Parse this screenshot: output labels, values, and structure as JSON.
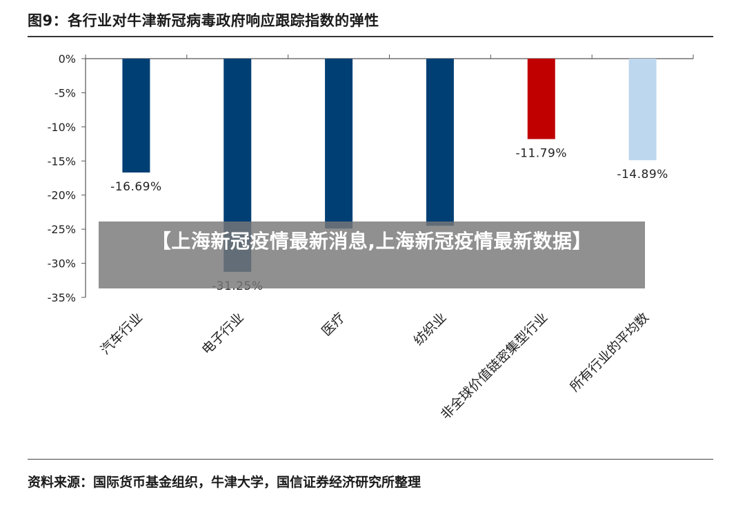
{
  "header": {
    "title": "图9：各行业对牛津新冠病毒政府响应跟踪指数的弹性"
  },
  "footer": {
    "source": "资料来源：国际货币基金组织，牛津大学，国信证券经济研究所整理"
  },
  "overlay": {
    "text": "【上海新冠疫情最新消息,上海新冠疫情最新数据】"
  },
  "colors": {
    "dark_blue": "#003f74",
    "red": "#c00000",
    "light_blue": "#bdd7ee",
    "axis": "#555555"
  },
  "chart_data": {
    "type": "bar",
    "title": "",
    "xlabel": "",
    "ylabel": "",
    "ylim": [
      -35,
      0
    ],
    "yticks": [
      0,
      -5,
      -10,
      -15,
      -20,
      -25,
      -30,
      -35
    ],
    "ytick_labels": [
      "0%",
      "-5%",
      "-10%",
      "-15%",
      "-20%",
      "-25%",
      "-30%",
      "-35%"
    ],
    "grid": false,
    "categories": [
      "汽车行业",
      "电子行业",
      "医疗",
      "纺织业",
      "非全球价值链密集型行业",
      "所有行业的平均数"
    ],
    "values": [
      -16.69,
      -31.25,
      -24.9,
      -24.5,
      -11.79,
      -14.89
    ],
    "data_labels": [
      "-16.69%",
      "-31.25%",
      "",
      "",
      "-11.79%",
      "-14.89%"
    ],
    "bar_colors": [
      "#003f74",
      "#003f74",
      "#003f74",
      "#003f74",
      "#c00000",
      "#bdd7ee"
    ]
  }
}
